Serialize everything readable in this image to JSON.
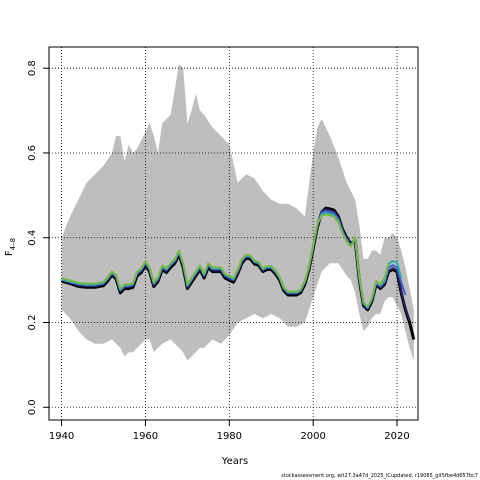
{
  "chart_data": {
    "type": "line",
    "title": "",
    "xlabel": "Years",
    "ylabel_main": "F",
    "ylabel_sub": "4–8",
    "xlim": [
      1937,
      2025
    ],
    "ylim": [
      -0.03,
      0.85
    ],
    "grid": true,
    "grid_style": "dotted",
    "x_ticks": [
      1940,
      1960,
      1980,
      2000,
      2020
    ],
    "y_ticks": [
      0.0,
      0.2,
      0.4,
      0.6,
      0.8
    ],
    "x_tick_labels": [
      "1940",
      "1960",
      "1980",
      "2000",
      "2020"
    ],
    "y_tick_labels": [
      "0.0",
      "0.2",
      "0.4",
      "0.6",
      "0.8"
    ],
    "band_color": "#bebebe",
    "band": {
      "x": [
        1940,
        1942,
        1944,
        1946,
        1948,
        1950,
        1952,
        1953,
        1954,
        1955,
        1956,
        1957,
        1958,
        1960,
        1961,
        1962,
        1963,
        1964,
        1966,
        1967,
        1968,
        1969,
        1970,
        1971,
        1972,
        1973,
        1974,
        1976,
        1978,
        1980,
        1982,
        1984,
        1986,
        1988,
        1990,
        1992,
        1994,
        1996,
        1998,
        2000,
        2001,
        2002,
        2004,
        2006,
        2008,
        2009,
        2010,
        2011,
        2012,
        2013,
        2014,
        2015,
        2016,
        2017,
        2018,
        2019,
        2020,
        2021,
        2022,
        2023,
        2024
      ],
      "upper": [
        0.4,
        0.45,
        0.49,
        0.53,
        0.55,
        0.57,
        0.6,
        0.64,
        0.64,
        0.58,
        0.62,
        0.6,
        0.61,
        0.65,
        0.67,
        0.64,
        0.6,
        0.67,
        0.69,
        0.75,
        0.81,
        0.8,
        0.67,
        0.7,
        0.74,
        0.7,
        0.69,
        0.66,
        0.64,
        0.62,
        0.53,
        0.55,
        0.54,
        0.51,
        0.49,
        0.48,
        0.48,
        0.47,
        0.45,
        0.6,
        0.66,
        0.68,
        0.64,
        0.59,
        0.53,
        0.51,
        0.49,
        0.43,
        0.35,
        0.35,
        0.37,
        0.37,
        0.36,
        0.4,
        0.4,
        0.41,
        0.4,
        0.37,
        0.33,
        0.28,
        0.23
      ],
      "lower": [
        0.23,
        0.21,
        0.18,
        0.16,
        0.15,
        0.15,
        0.16,
        0.15,
        0.14,
        0.12,
        0.13,
        0.13,
        0.14,
        0.16,
        0.16,
        0.13,
        0.14,
        0.15,
        0.16,
        0.15,
        0.14,
        0.13,
        0.11,
        0.12,
        0.13,
        0.14,
        0.14,
        0.16,
        0.15,
        0.17,
        0.2,
        0.21,
        0.22,
        0.21,
        0.22,
        0.21,
        0.19,
        0.19,
        0.2,
        0.26,
        0.29,
        0.32,
        0.34,
        0.34,
        0.31,
        0.3,
        0.27,
        0.22,
        0.18,
        0.19,
        0.21,
        0.22,
        0.22,
        0.25,
        0.26,
        0.26,
        0.24,
        0.22,
        0.18,
        0.14,
        0.11
      ]
    },
    "series": [
      {
        "color": "#000000",
        "x": [
          1940,
          1942,
          1944,
          1946,
          1948,
          1950,
          1951,
          1952,
          1953,
          1954,
          1955,
          1956,
          1957,
          1958,
          1959,
          1960,
          1961,
          1962,
          1963,
          1964,
          1965,
          1966,
          1967,
          1968,
          1969,
          1970,
          1971,
          1972,
          1973,
          1974,
          1975,
          1976,
          1977,
          1978,
          1979,
          1980,
          1981,
          1982,
          1983,
          1984,
          1985,
          1986,
          1987,
          1988,
          1989,
          1990,
          1991,
          1992,
          1993,
          1994,
          1995,
          1996,
          1997,
          1998,
          1999,
          2000,
          2001,
          2002,
          2003,
          2004,
          2005,
          2006,
          2007,
          2008,
          2009,
          2010,
          2011,
          2012,
          2013,
          2014,
          2015,
          2016,
          2017,
          2018,
          2019,
          2020,
          2021,
          2022,
          2023,
          2024
        ],
        "values": [
          0.298,
          0.292,
          0.285,
          0.283,
          0.283,
          0.287,
          0.298,
          0.312,
          0.303,
          0.27,
          0.28,
          0.28,
          0.283,
          0.31,
          0.318,
          0.335,
          0.32,
          0.285,
          0.297,
          0.325,
          0.318,
          0.33,
          0.34,
          0.36,
          0.33,
          0.28,
          0.295,
          0.31,
          0.325,
          0.305,
          0.33,
          0.32,
          0.32,
          0.32,
          0.305,
          0.3,
          0.295,
          0.315,
          0.34,
          0.352,
          0.35,
          0.338,
          0.335,
          0.32,
          0.325,
          0.325,
          0.315,
          0.3,
          0.275,
          0.265,
          0.265,
          0.265,
          0.27,
          0.29,
          0.325,
          0.375,
          0.425,
          0.46,
          0.47,
          0.468,
          0.465,
          0.45,
          0.42,
          0.4,
          0.385,
          0.395,
          0.3,
          0.24,
          0.23,
          0.25,
          0.29,
          0.28,
          0.29,
          0.32,
          0.325,
          0.32,
          0.27,
          0.23,
          0.2,
          0.16
        ]
      },
      {
        "color": "#2d1a5c",
        "x": [
          1940,
          1942,
          1944,
          1946,
          1948,
          1950,
          1951,
          1952,
          1953,
          1954,
          1955,
          1956,
          1957,
          1958,
          1959,
          1960,
          1961,
          1962,
          1963,
          1964,
          1965,
          1966,
          1967,
          1968,
          1969,
          1970,
          1971,
          1972,
          1973,
          1974,
          1975,
          1976,
          1977,
          1978,
          1979,
          1980,
          1981,
          1982,
          1983,
          1984,
          1985,
          1986,
          1987,
          1988,
          1989,
          1990,
          1991,
          1992,
          1993,
          1994,
          1995,
          1996,
          1997,
          1998,
          1999,
          2000,
          2001,
          2002,
          2003,
          2004,
          2005,
          2006,
          2007,
          2008,
          2009,
          2010,
          2011,
          2012,
          2013,
          2014,
          2015,
          2016,
          2017,
          2018,
          2019,
          2020,
          2021,
          2022,
          2023
        ],
        "values": [
          0.3,
          0.294,
          0.288,
          0.286,
          0.286,
          0.29,
          0.301,
          0.315,
          0.306,
          0.273,
          0.283,
          0.283,
          0.286,
          0.313,
          0.321,
          0.338,
          0.323,
          0.288,
          0.3,
          0.328,
          0.321,
          0.333,
          0.343,
          0.363,
          0.333,
          0.283,
          0.298,
          0.313,
          0.328,
          0.308,
          0.333,
          0.323,
          0.323,
          0.323,
          0.308,
          0.303,
          0.298,
          0.318,
          0.343,
          0.355,
          0.353,
          0.341,
          0.338,
          0.323,
          0.328,
          0.328,
          0.318,
          0.303,
          0.278,
          0.268,
          0.268,
          0.268,
          0.273,
          0.293,
          0.328,
          0.378,
          0.428,
          0.463,
          0.467,
          0.465,
          0.462,
          0.448,
          0.418,
          0.398,
          0.383,
          0.397,
          0.302,
          0.242,
          0.232,
          0.252,
          0.292,
          0.282,
          0.292,
          0.322,
          0.328,
          0.323,
          0.275,
          0.235,
          0.205
        ]
      },
      {
        "color": "#3a5fcd",
        "x": [
          1940,
          1942,
          1944,
          1946,
          1948,
          1950,
          1951,
          1952,
          1953,
          1954,
          1955,
          1956,
          1957,
          1958,
          1959,
          1960,
          1961,
          1962,
          1963,
          1964,
          1965,
          1966,
          1967,
          1968,
          1969,
          1970,
          1971,
          1972,
          1973,
          1974,
          1975,
          1976,
          1977,
          1978,
          1979,
          1980,
          1981,
          1982,
          1983,
          1984,
          1985,
          1986,
          1987,
          1988,
          1989,
          1990,
          1991,
          1992,
          1993,
          1994,
          1995,
          1996,
          1997,
          1998,
          1999,
          2000,
          2001,
          2002,
          2003,
          2004,
          2005,
          2006,
          2007,
          2008,
          2009,
          2010,
          2011,
          2012,
          2013,
          2014,
          2015,
          2016,
          2017,
          2018,
          2019,
          2020,
          2021,
          2022
        ],
        "values": [
          0.301,
          0.295,
          0.29,
          0.288,
          0.288,
          0.292,
          0.303,
          0.317,
          0.308,
          0.276,
          0.286,
          0.286,
          0.289,
          0.316,
          0.324,
          0.341,
          0.326,
          0.291,
          0.303,
          0.331,
          0.324,
          0.336,
          0.346,
          0.366,
          0.336,
          0.286,
          0.301,
          0.316,
          0.331,
          0.311,
          0.336,
          0.326,
          0.326,
          0.326,
          0.311,
          0.306,
          0.301,
          0.321,
          0.346,
          0.357,
          0.355,
          0.343,
          0.34,
          0.325,
          0.33,
          0.33,
          0.32,
          0.305,
          0.28,
          0.27,
          0.27,
          0.27,
          0.275,
          0.295,
          0.33,
          0.38,
          0.43,
          0.46,
          0.463,
          0.461,
          0.458,
          0.445,
          0.415,
          0.396,
          0.382,
          0.398,
          0.304,
          0.244,
          0.234,
          0.254,
          0.294,
          0.285,
          0.295,
          0.33,
          0.335,
          0.33,
          0.295,
          0.265
        ]
      },
      {
        "color": "#20b2aa",
        "x": [
          1940,
          1942,
          1944,
          1946,
          1948,
          1950,
          1951,
          1952,
          1953,
          1954,
          1955,
          1956,
          1957,
          1958,
          1959,
          1960,
          1961,
          1962,
          1963,
          1964,
          1965,
          1966,
          1967,
          1968,
          1969,
          1970,
          1971,
          1972,
          1973,
          1974,
          1975,
          1976,
          1977,
          1978,
          1979,
          1980,
          1981,
          1982,
          1983,
          1984,
          1985,
          1986,
          1987,
          1988,
          1989,
          1990,
          1991,
          1992,
          1993,
          1994,
          1995,
          1996,
          1997,
          1998,
          1999,
          2000,
          2001,
          2002,
          2003,
          2004,
          2005,
          2006,
          2007,
          2008,
          2009,
          2010,
          2011,
          2012,
          2013,
          2014,
          2015,
          2016,
          2017,
          2018,
          2019,
          2020,
          2021
        ],
        "values": [
          0.303,
          0.297,
          0.292,
          0.29,
          0.29,
          0.294,
          0.305,
          0.319,
          0.31,
          0.278,
          0.288,
          0.288,
          0.291,
          0.318,
          0.326,
          0.343,
          0.328,
          0.293,
          0.305,
          0.333,
          0.326,
          0.338,
          0.348,
          0.368,
          0.338,
          0.288,
          0.303,
          0.318,
          0.333,
          0.313,
          0.338,
          0.328,
          0.328,
          0.328,
          0.313,
          0.308,
          0.303,
          0.323,
          0.348,
          0.358,
          0.356,
          0.344,
          0.341,
          0.326,
          0.331,
          0.331,
          0.321,
          0.306,
          0.281,
          0.271,
          0.271,
          0.271,
          0.276,
          0.296,
          0.331,
          0.381,
          0.431,
          0.455,
          0.458,
          0.456,
          0.453,
          0.44,
          0.412,
          0.393,
          0.38,
          0.4,
          0.306,
          0.246,
          0.236,
          0.256,
          0.296,
          0.288,
          0.3,
          0.338,
          0.345,
          0.342,
          0.305
        ]
      },
      {
        "color": "#7ab648",
        "x": [
          1940,
          1942,
          1944,
          1946,
          1948,
          1950,
          1951,
          1952,
          1953,
          1954,
          1955,
          1956,
          1957,
          1958,
          1959,
          1960,
          1961,
          1962,
          1963,
          1964,
          1965,
          1966,
          1967,
          1968,
          1969,
          1970,
          1971,
          1972,
          1973,
          1974,
          1975,
          1976,
          1977,
          1978,
          1979,
          1980,
          1981,
          1982,
          1983,
          1984,
          1985,
          1986,
          1987,
          1988,
          1989,
          1990,
          1991,
          1992,
          1993,
          1994,
          1995,
          1996,
          1997,
          1998,
          1999,
          2000,
          2001,
          2002,
          2003,
          2004,
          2005,
          2006,
          2007,
          2008,
          2009,
          2010,
          2011,
          2012,
          2013,
          2014,
          2015,
          2016,
          2017,
          2018
        ],
        "values": [
          0.305,
          0.299,
          0.294,
          0.292,
          0.292,
          0.296,
          0.307,
          0.321,
          0.312,
          0.28,
          0.29,
          0.29,
          0.293,
          0.32,
          0.328,
          0.345,
          0.33,
          0.295,
          0.307,
          0.335,
          0.328,
          0.34,
          0.35,
          0.37,
          0.34,
          0.29,
          0.305,
          0.32,
          0.335,
          0.315,
          0.34,
          0.33,
          0.33,
          0.33,
          0.315,
          0.31,
          0.305,
          0.325,
          0.35,
          0.36,
          0.358,
          0.346,
          0.343,
          0.328,
          0.333,
          0.333,
          0.323,
          0.308,
          0.283,
          0.273,
          0.273,
          0.273,
          0.278,
          0.298,
          0.333,
          0.383,
          0.433,
          0.452,
          0.455,
          0.453,
          0.45,
          0.437,
          0.41,
          0.391,
          0.379,
          0.402,
          0.308,
          0.248,
          0.238,
          0.258,
          0.298,
          0.29,
          0.305,
          0.34
        ]
      }
    ]
  },
  "footer": {
    "source": "stockassessment.org, wit27.3a47d_2025_lCupdated, r19085_git5fbe4d657bc7"
  }
}
